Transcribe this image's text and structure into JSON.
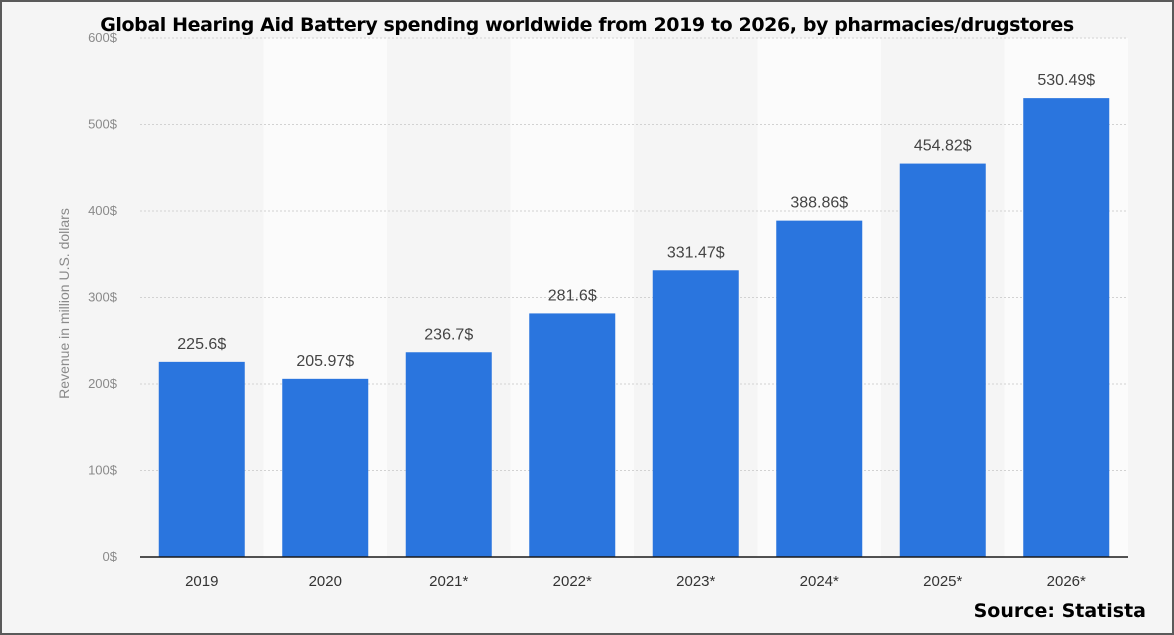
{
  "chart_data": {
    "type": "bar",
    "title": "Global Hearing Aid Battery  spending worldwide from 2019 to 2026, by pharmacies/drugstores",
    "source": "Source: Statista",
    "ylabel": "Revenue in million U.S. dollars",
    "xlabel": "",
    "categories": [
      "2019",
      "2020",
      "2021*",
      "2022*",
      "2023*",
      "2024*",
      "2025*",
      "2026*"
    ],
    "values": [
      225.6,
      205.97,
      236.7,
      281.6,
      331.47,
      388.86,
      454.82,
      530.49
    ],
    "value_labels": [
      "225.6$",
      "205.97$",
      "236.7$",
      "281.6$",
      "331.47$",
      "388.86$",
      "454.82$",
      "530.49$"
    ],
    "ylim": [
      0,
      600
    ],
    "yticks": [
      0,
      100,
      200,
      300,
      400,
      500,
      600
    ],
    "ytick_labels": [
      "0$",
      "100$",
      "200$",
      "300$",
      "400$",
      "500$",
      "600$"
    ],
    "grid": true,
    "bar_color": "#2a75de"
  }
}
